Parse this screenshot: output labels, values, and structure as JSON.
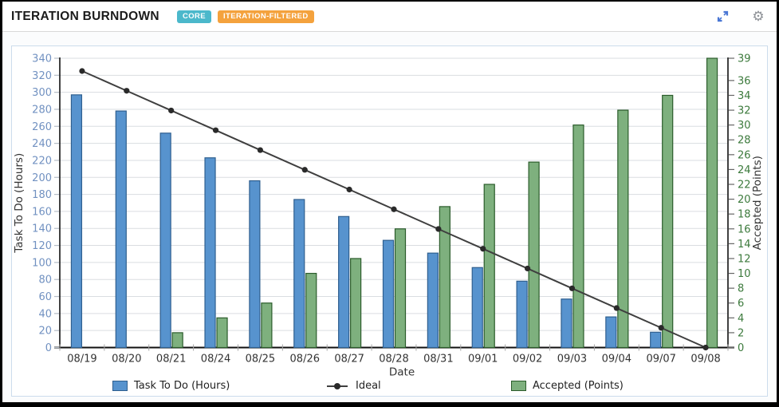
{
  "header": {
    "title": "ITERATION BURNDOWN",
    "badges": [
      {
        "label": "CORE",
        "color": "#4bb8cb"
      },
      {
        "label": "ITERATION-FILTERED",
        "color": "#f4a23d"
      }
    ],
    "icons": {
      "expand_color": "#4a77d4",
      "gear_glyph": "⚙",
      "gear_color": "#8d9196"
    }
  },
  "chart_data": {
    "type": "bar",
    "title": "ITERATION BURNDOWN",
    "categories": [
      "08/19",
      "08/20",
      "08/21",
      "08/24",
      "08/25",
      "08/26",
      "08/27",
      "08/28",
      "08/31",
      "09/01",
      "09/02",
      "09/03",
      "09/04",
      "09/07",
      "09/08"
    ],
    "xlabel": "Date",
    "series": [
      {
        "name": "Task To Do (Hours)",
        "kind": "bar",
        "axis": "left",
        "color": "#5793ce",
        "border_color": "#2f5f8f",
        "values": [
          297,
          278,
          252,
          223,
          196,
          174,
          154,
          126,
          111,
          94,
          78,
          57,
          36,
          18,
          0
        ]
      },
      {
        "name": "Ideal",
        "kind": "line",
        "axis": "left",
        "color": "#3f3f3f",
        "marker_color": "#2a2a2a",
        "values": [
          325,
          301.8,
          278.6,
          255.4,
          232.1,
          208.9,
          185.7,
          162.5,
          139.3,
          116.1,
          92.9,
          69.6,
          46.4,
          23.2,
          0
        ]
      },
      {
        "name": "Accepted (Points)",
        "kind": "bar",
        "axis": "right",
        "color": "#7eb07e",
        "border_color": "#2b5c2b",
        "values": [
          0,
          0,
          2,
          4,
          6,
          10,
          12,
          16,
          19,
          22,
          25,
          30,
          32,
          34,
          39
        ]
      }
    ],
    "left_axis": {
      "label": "Task To Do (Hours)",
      "min": 0,
      "max": 340,
      "ticks": [
        0,
        20,
        40,
        60,
        80,
        100,
        120,
        140,
        160,
        180,
        200,
        220,
        240,
        260,
        280,
        300,
        320,
        340
      ],
      "tick_color": "#7191c1"
    },
    "right_axis": {
      "label": "Accepted (Points)",
      "min": 0,
      "max": 39,
      "ticks": [
        0,
        2,
        4,
        6,
        8,
        10,
        12,
        14,
        16,
        18,
        20,
        22,
        24,
        26,
        28,
        30,
        32,
        34,
        36,
        39
      ],
      "tick_color": "#3c7a3c"
    },
    "grid": true,
    "legend_position": "bottom"
  }
}
